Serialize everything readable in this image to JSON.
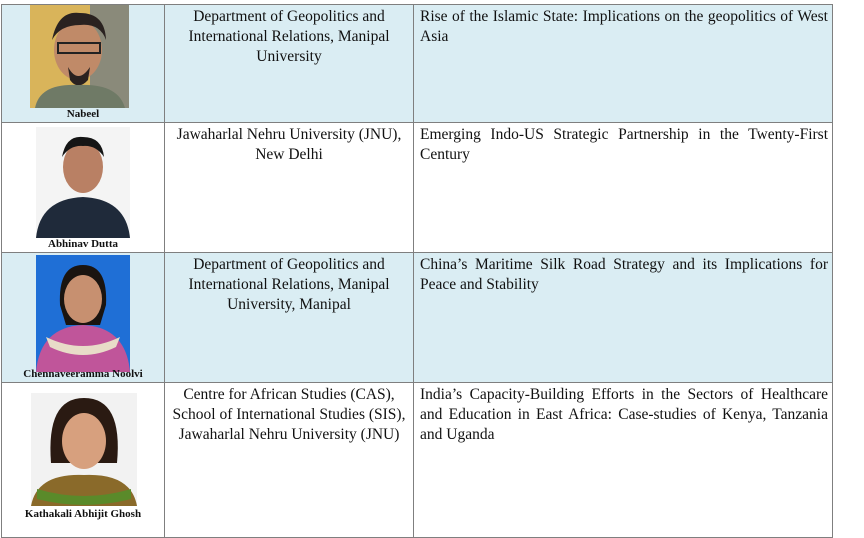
{
  "rows": [
    {
      "name": "Nabeel",
      "affiliation": "Department of Geopolitics and International Relations, Manipal University",
      "topic": "Rise of the Islamic State: Implications on the geopolitics of West Asia",
      "photo_bg": "#d9b45a",
      "shaded": true
    },
    {
      "name": "Abhinav Dutta",
      "affiliation": "Jawaharlal Nehru University (JNU), New Delhi",
      "topic": "Emerging Indo-US Strategic Partnership in the Twenty-First Century",
      "photo_bg": "#f4f4f4",
      "shaded": false
    },
    {
      "name": "Chennaveeramma Noolvi",
      "affiliation": "Department of Geopolitics and International Relations, Manipal University, Manipal",
      "topic": "China’s Maritime Silk Road Strategy and its Implications for Peace and Stability",
      "photo_bg": "#1f6fd6",
      "shaded": true
    },
    {
      "name": "Kathakali Abhijit Ghosh",
      "affiliation": "Centre for African Studies (CAS), School of International Studies (SIS), Jawaharlal Nehru University (JNU)",
      "topic": "India’s Capacity-Building Efforts in the Sectors of Healthcare and Education in East Africa: Case-studies of Kenya, Tanzania and Uganda",
      "photo_bg": "#f2f2f2",
      "shaded": false
    }
  ],
  "colors": {
    "shaded_row": "#daedf3",
    "border": "#7f7f7f"
  }
}
